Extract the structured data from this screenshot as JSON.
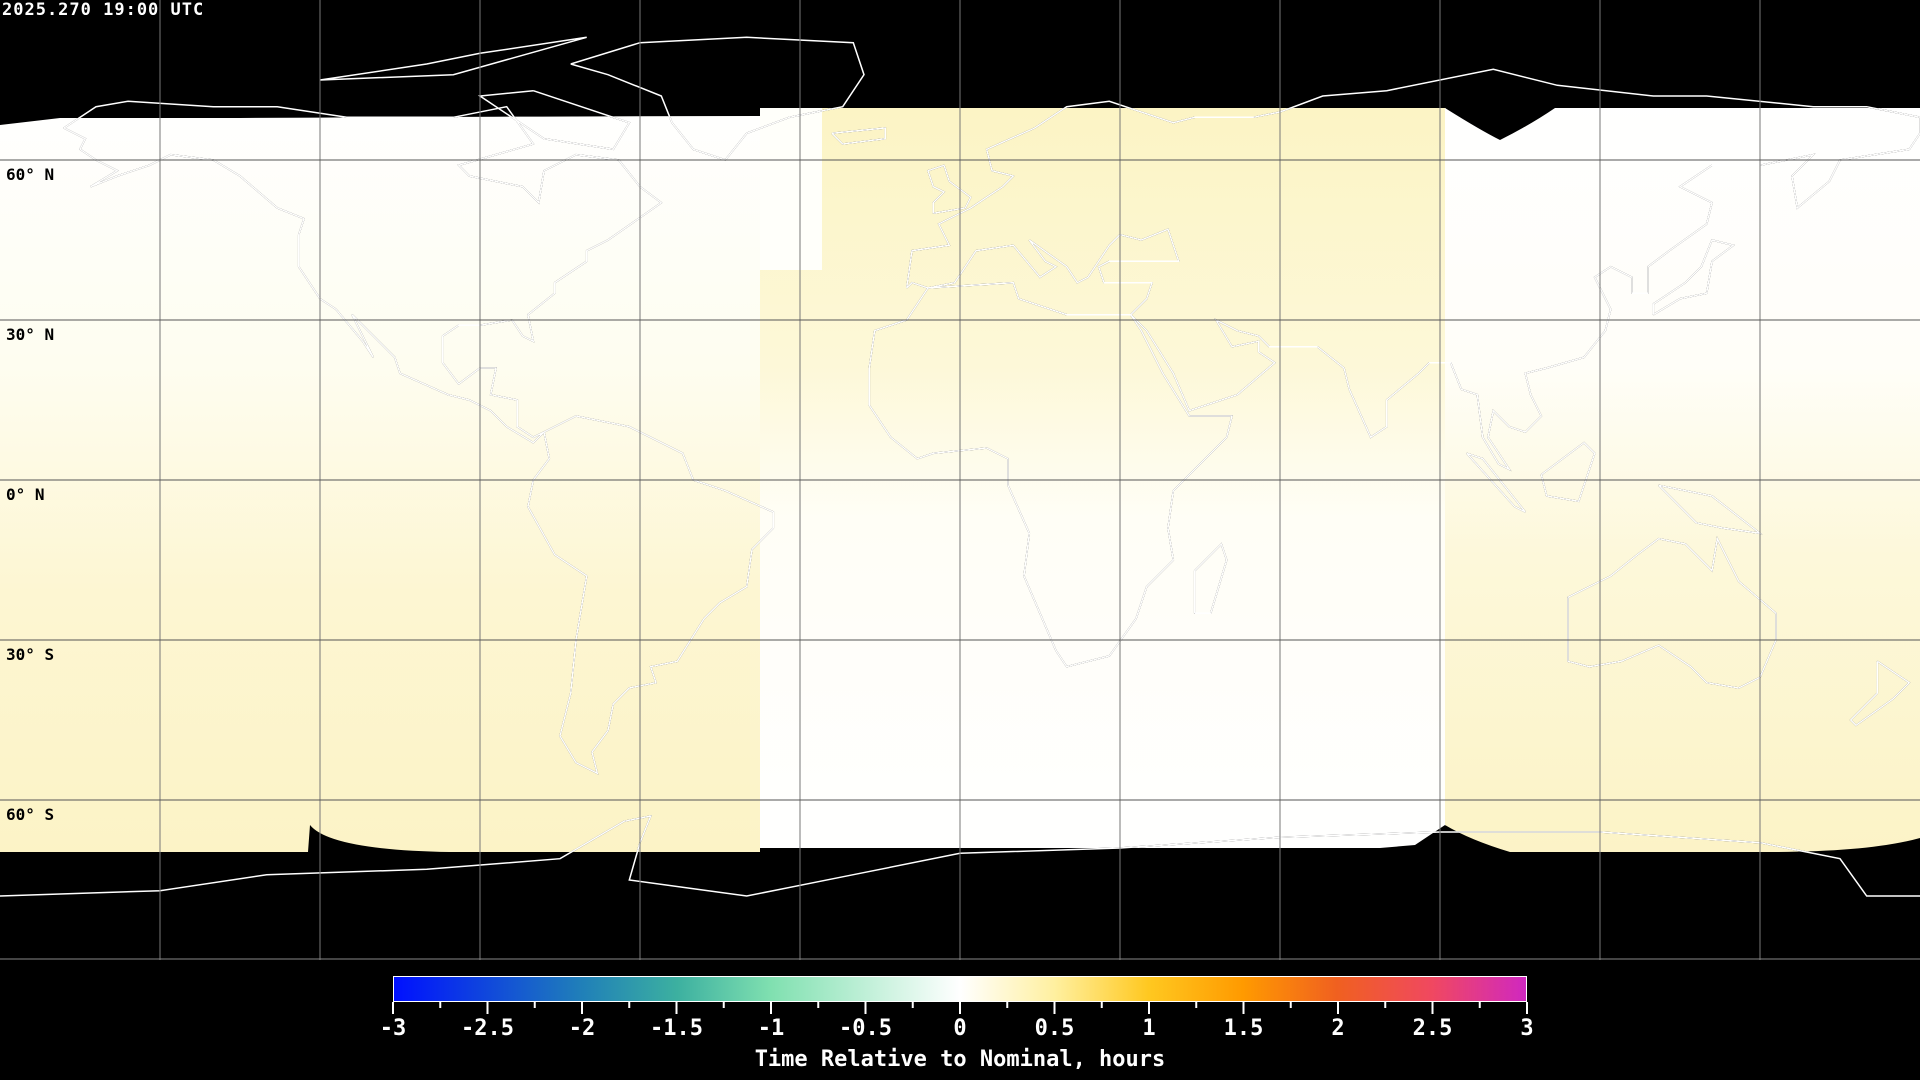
{
  "header": {
    "timestamp": "2025.270 19:00 UTC"
  },
  "map": {
    "projection": "equirectangular",
    "grid_spacing_deg": 30,
    "lat_labels": [
      "60° N",
      "30° N",
      "0° N",
      "30° S",
      "60° S"
    ],
    "no_data_color": "#000000",
    "coastline_color_on_data": "#000000",
    "coastline_color_on_nodata": "#ffffff"
  },
  "colorbar": {
    "title": "Time Relative to Nominal, hours",
    "range": [
      -3,
      3
    ],
    "tick_labels": [
      "-3",
      "-2.5",
      "-2",
      "-1.5",
      "-1",
      "-0.5",
      "0",
      "0.5",
      "1",
      "1.5",
      "2",
      "2.5",
      "3"
    ],
    "colors": {
      "-3": "#0010ff",
      "-2": "#2080b8",
      "-1.5": "#3cb0a0",
      "-1": "#80e0b0",
      "0": "#ffffff",
      "0.5": "#fff0a0",
      "1": "#ffc820",
      "1.5": "#ff9a00",
      "2": "#f06020",
      "2.5": "#f04860",
      "3": "#d028c0"
    }
  }
}
